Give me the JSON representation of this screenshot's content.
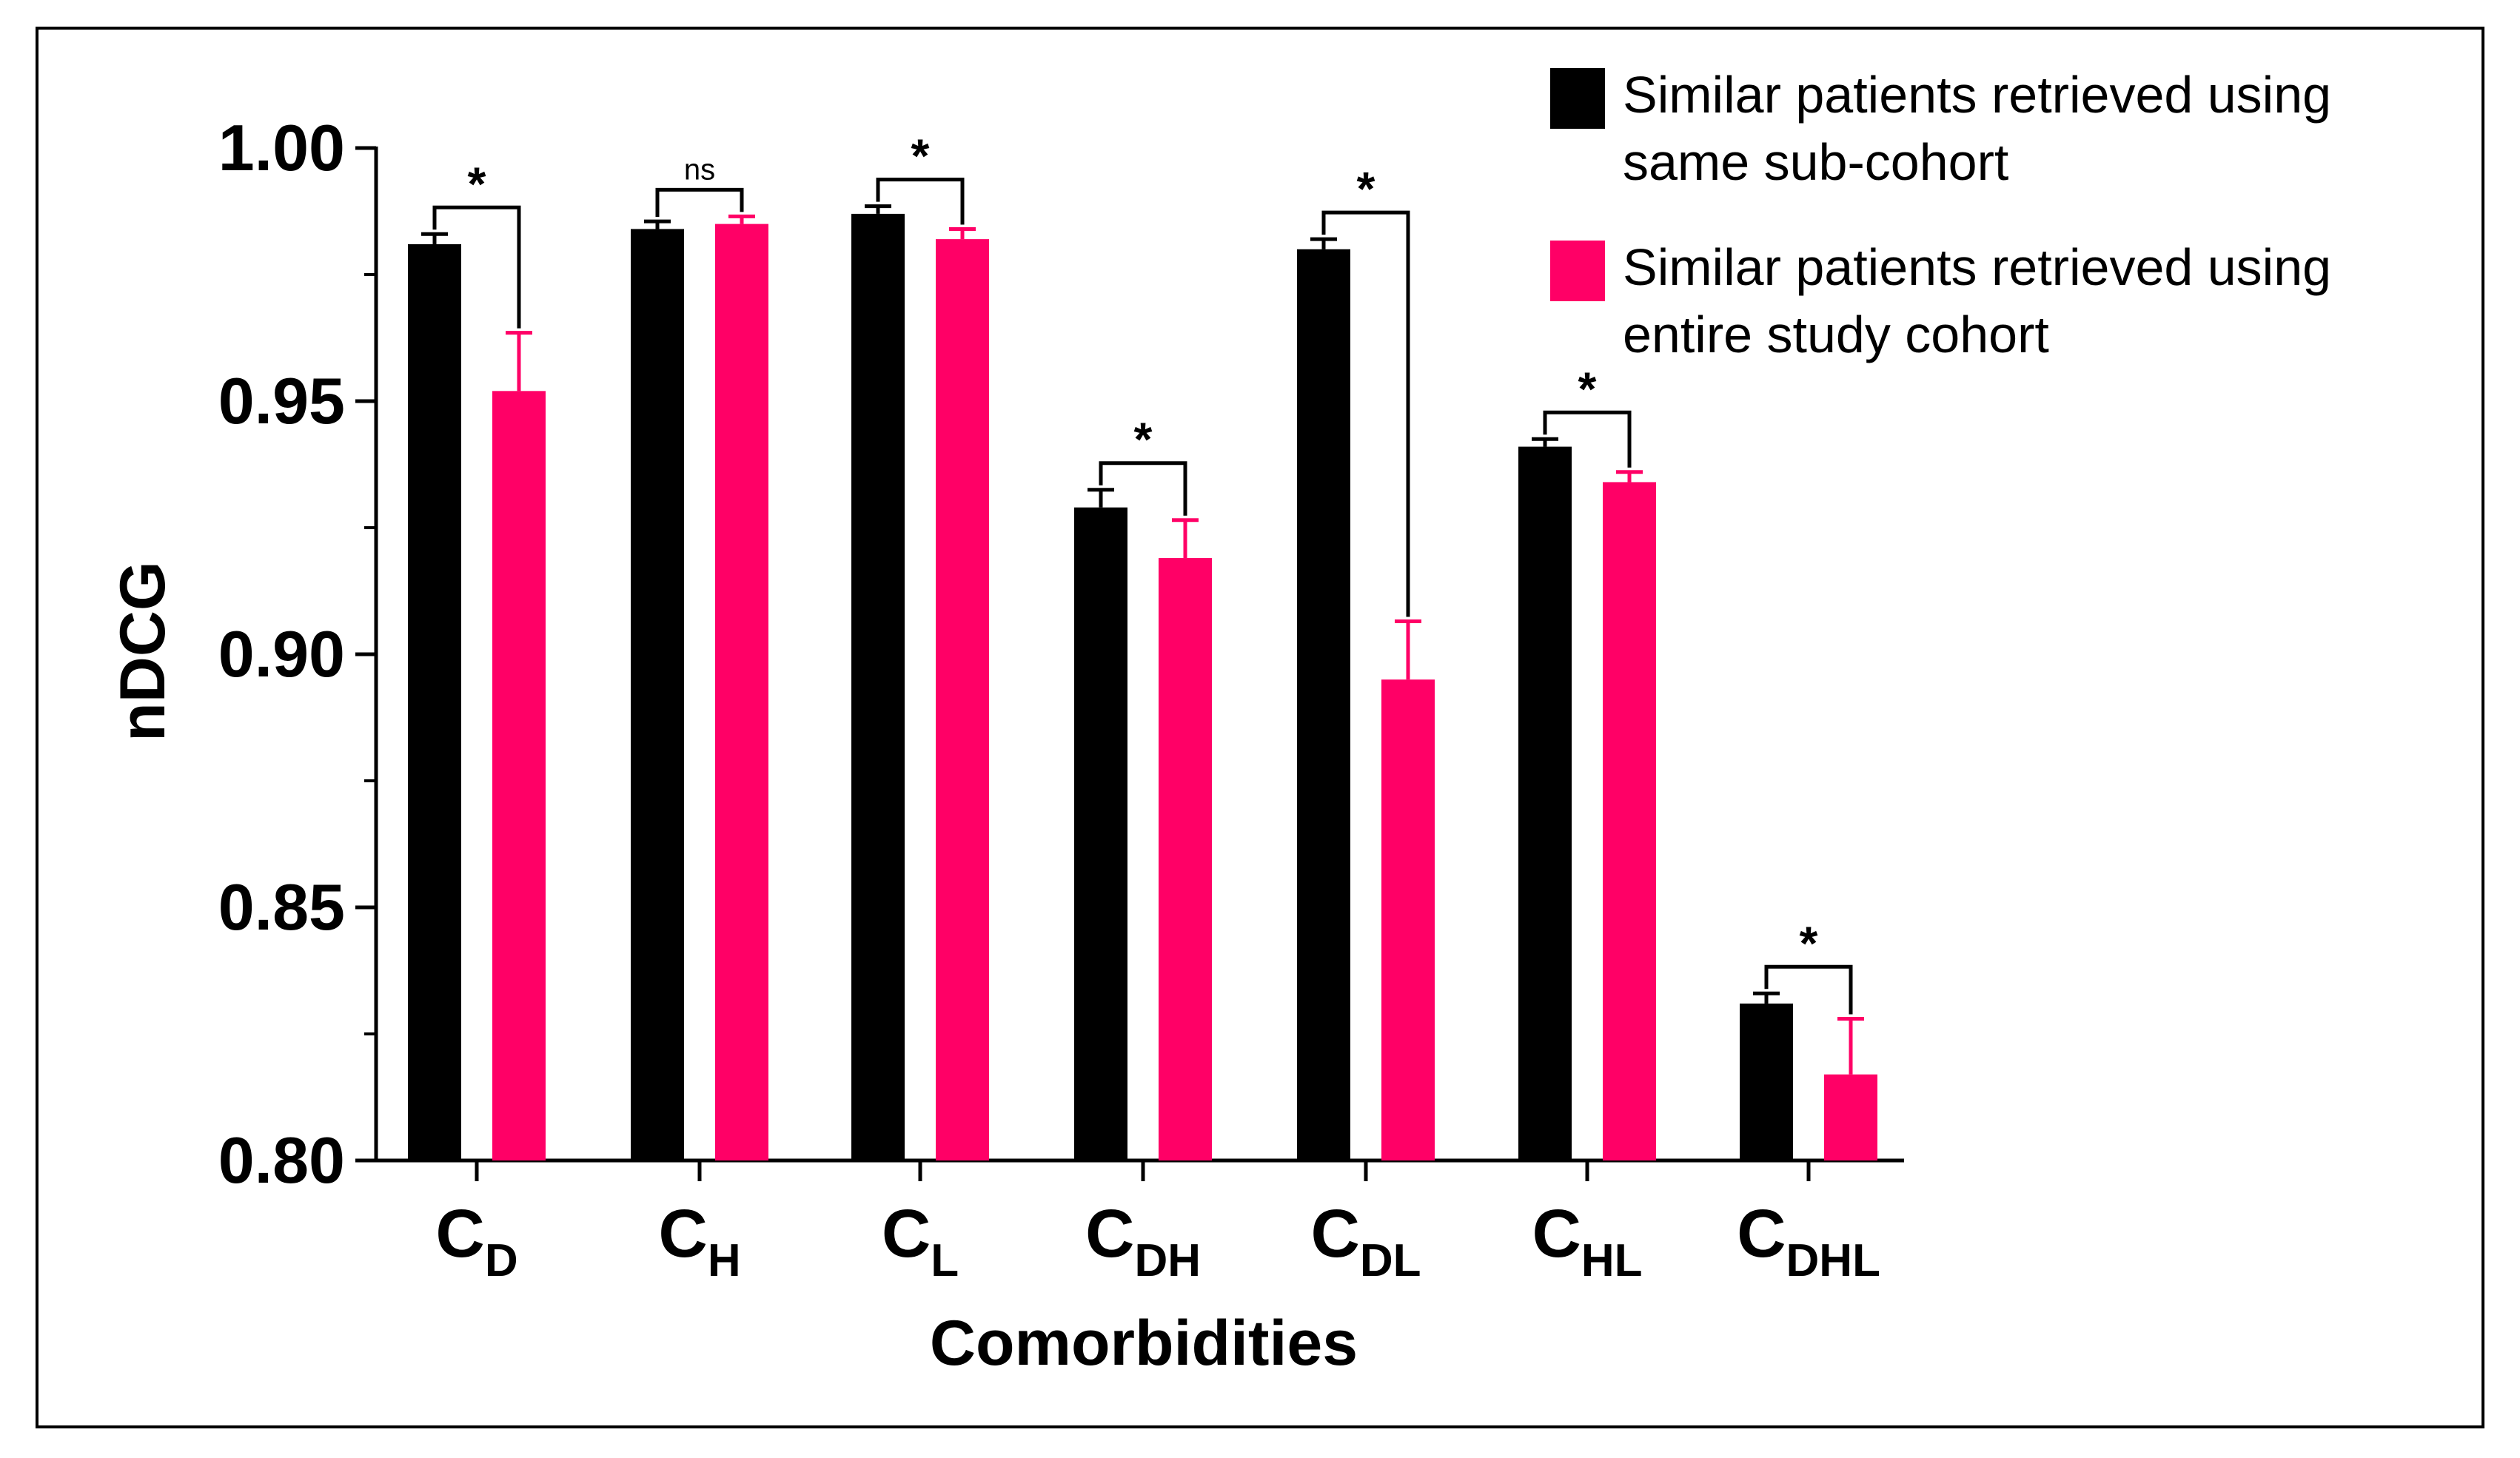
{
  "chart_data": {
    "type": "bar",
    "title": "",
    "xlabel": "Comorbidities",
    "ylabel": "nDCG",
    "ylim": [
      0.8,
      1.0
    ],
    "yticks": [
      "0.80",
      "0.85",
      "0.90",
      "0.95",
      "1.00"
    ],
    "grid": false,
    "legend_position": "top-right",
    "categories": [
      {
        "main": "C",
        "sub": "D"
      },
      {
        "main": "C",
        "sub": "H"
      },
      {
        "main": "C",
        "sub": "L"
      },
      {
        "main": "C",
        "sub": "DH"
      },
      {
        "main": "C",
        "sub": "DL"
      },
      {
        "main": "C",
        "sub": "HL"
      },
      {
        "main": "C",
        "sub": "DHL"
      }
    ],
    "series": [
      {
        "name": "Similar patients retrieved using same sub-cohort",
        "legend_lines": [
          "Similar patients retrieved using",
          "same sub-cohort"
        ],
        "color": "#000000",
        "values": [
          0.981,
          0.984,
          0.987,
          0.929,
          0.98,
          0.941,
          0.831
        ],
        "errors": [
          0.002,
          0.0015,
          0.0015,
          0.0035,
          0.002,
          0.0015,
          0.002
        ]
      },
      {
        "name": "Similar patients retrieved using entire study cohort",
        "legend_lines": [
          "Similar patients retrieved using",
          "entire study cohort"
        ],
        "color": "#FF0066",
        "values": [
          0.952,
          0.985,
          0.982,
          0.919,
          0.895,
          0.934,
          0.817
        ],
        "errors": [
          0.0115,
          0.0015,
          0.002,
          0.0075,
          0.0115,
          0.002,
          0.011
        ]
      }
    ],
    "significance": [
      "*",
      "ns",
      "*",
      "*",
      "*",
      "*",
      "*"
    ]
  }
}
